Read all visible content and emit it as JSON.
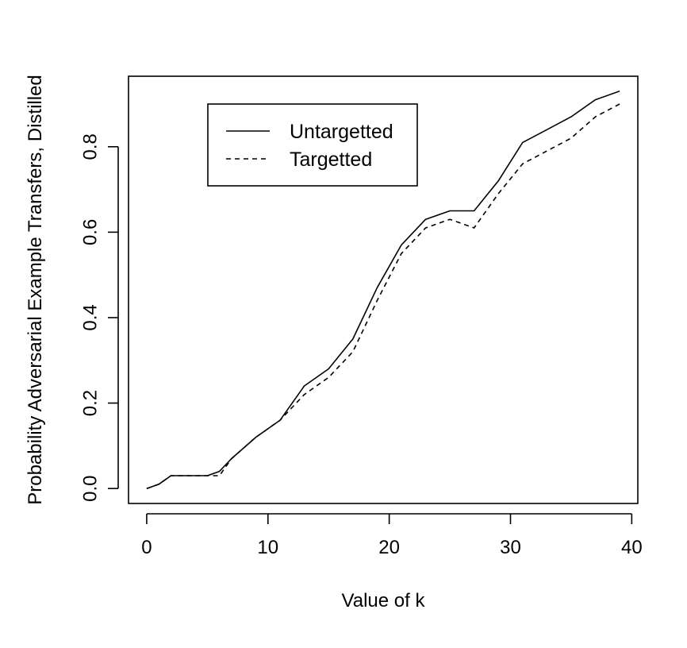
{
  "chart_data": {
    "type": "line",
    "title": "",
    "xlabel": "Value of k",
    "ylabel": "Probability Adversarial Example Transfers, Distilled",
    "xlim": [
      -1.5,
      40.5
    ],
    "ylim": [
      -0.035,
      0.965
    ],
    "xticks": [
      0,
      10,
      20,
      30,
      40
    ],
    "xtick_labels": [
      "0",
      "10",
      "20",
      "30",
      "40"
    ],
    "yticks": [
      0.0,
      0.2,
      0.4,
      0.6,
      0.8
    ],
    "ytick_labels": [
      "0.0",
      "0.2",
      "0.4",
      "0.6",
      "0.8"
    ],
    "grid": false,
    "legend_position": "top-left",
    "series": [
      {
        "name": "Untargetted",
        "line_style": "solid",
        "color": "#000000",
        "x": [
          0,
          1,
          2,
          3,
          4,
          5,
          6,
          7,
          9,
          11,
          13,
          15,
          17,
          19,
          21,
          23,
          25,
          27,
          29,
          31,
          33,
          35,
          37,
          39
        ],
        "y": [
          0.0,
          0.01,
          0.03,
          0.03,
          0.03,
          0.03,
          0.04,
          0.07,
          0.12,
          0.16,
          0.24,
          0.28,
          0.35,
          0.47,
          0.57,
          0.63,
          0.65,
          0.65,
          0.72,
          0.81,
          0.84,
          0.87,
          0.91,
          0.93
        ]
      },
      {
        "name": "Targetted",
        "line_style": "dashed",
        "color": "#000000",
        "x": [
          0,
          1,
          2,
          3,
          4,
          5,
          6,
          7,
          9,
          11,
          13,
          15,
          17,
          19,
          21,
          23,
          25,
          27,
          29,
          31,
          33,
          35,
          37,
          39
        ],
        "y": [
          0.0,
          0.01,
          0.03,
          0.03,
          0.03,
          0.03,
          0.03,
          0.07,
          0.12,
          0.16,
          0.22,
          0.26,
          0.32,
          0.44,
          0.55,
          0.61,
          0.63,
          0.61,
          0.69,
          0.76,
          0.79,
          0.82,
          0.87,
          0.9
        ]
      }
    ]
  }
}
